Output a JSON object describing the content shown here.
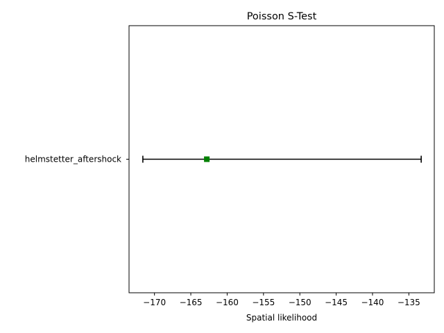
{
  "chart_data": {
    "type": "scatter",
    "title": "Poisson S-Test",
    "xlabel": "Spatial likelihood",
    "ylabel": "",
    "xlim": [
      -173.5,
      -131.5
    ],
    "x_ticks": [
      -170,
      -165,
      -160,
      -155,
      -150,
      -145,
      -140,
      -135
    ],
    "x_tick_labels": [
      "−170",
      "−165",
      "−160",
      "−155",
      "−150",
      "−145",
      "−140",
      "−135"
    ],
    "categories": [
      "helmstetter_aftershock"
    ],
    "series": [
      {
        "observed": [
          -162.8
        ],
        "interval_low": [
          -171.6
        ],
        "interval_high": [
          -133.3
        ],
        "marker": "square",
        "marker_color": "#008000",
        "errorbar_color": "#000000"
      }
    ],
    "grid": false,
    "legend": false
  }
}
